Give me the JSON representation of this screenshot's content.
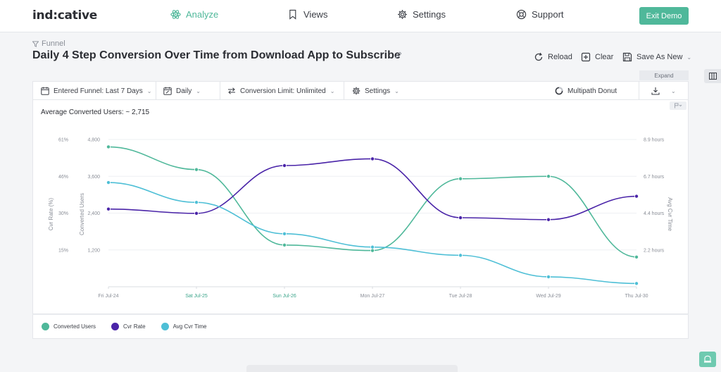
{
  "nav": {
    "logo": "ind:cative",
    "items": [
      {
        "label": "Analyze",
        "icon": "atom-icon",
        "active": true
      },
      {
        "label": "Views",
        "icon": "bookmark-icon",
        "active": false
      },
      {
        "label": "Settings",
        "icon": "gear-icon",
        "active": false
      },
      {
        "label": "Support",
        "icon": "lifebuoy-icon",
        "active": false
      }
    ],
    "exit_label": "Exit Demo"
  },
  "header": {
    "breadcrumb": "Funnel",
    "title": "Daily 4 Step Conversion Over Time from Download App to Subscribe",
    "reload": "Reload",
    "clear": "Clear",
    "save_as": "Save As New",
    "expand": "Expand"
  },
  "toolbar": {
    "entered_funnel": "Entered Funnel: Last 7 Days",
    "interval": "Daily",
    "conversion_limit": "Conversion Limit: Unlimited",
    "settings": "Settings",
    "multipath": "Multipath Donut"
  },
  "panel": {
    "average_text": "Average Converted Users: ~ 2,715"
  },
  "colors": {
    "accent": "#4fb89a",
    "converted_users": "#4fb89a",
    "cvr_rate": "#4a24a8",
    "avg_cvr_time": "#4ebfd6"
  },
  "chart_data": {
    "type": "line",
    "x": [
      "Fri Jul-24",
      "Sat Jul-25",
      "Sun Jul-26",
      "Mon Jul-27",
      "Tue Jul-28",
      "Wed Jul-29",
      "Thu Jul-30"
    ],
    "x_highlight": [
      "Sat Jul-25",
      "Sun Jul-26"
    ],
    "axes": {
      "cvr_rate": {
        "label": "Cvr Rate (%)",
        "ticks": [
          "61%",
          "46%",
          "30%",
          "15%"
        ],
        "range": [
          0,
          61
        ]
      },
      "converted_users": {
        "label": "Converted Users",
        "ticks": [
          "4,800",
          "3,600",
          "2,400",
          "1,200"
        ],
        "range": [
          0,
          4800
        ]
      },
      "avg_cvr_time": {
        "label": "Avg Cvr Time",
        "ticks": [
          "8.9 hours",
          "6.7 hours",
          "4.4 hours",
          "2.2 hours"
        ],
        "range": [
          0,
          8.9
        ]
      }
    },
    "series": [
      {
        "name": "Converted Users",
        "axis": "converted_users",
        "values": [
          4560,
          3820,
          1360,
          1180,
          3520,
          3600,
          970
        ]
      },
      {
        "name": "Cvr Rate",
        "axis": "cvr_rate",
        "values": [
          32.2,
          30.4,
          50.2,
          53.0,
          28.6,
          27.8,
          37.5
        ]
      },
      {
        "name": "Avg Cvr Time",
        "axis": "avg_cvr_time",
        "values": [
          6.3,
          5.1,
          3.2,
          2.4,
          1.9,
          0.6,
          0.2
        ]
      }
    ],
    "grid": true,
    "legend_position": "bottom-left"
  }
}
